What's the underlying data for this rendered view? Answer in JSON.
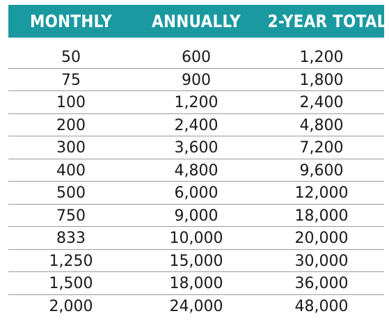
{
  "header": {
    "col1": "MONTHLY",
    "col2": "ANNUALLY",
    "col3": "2-YEAR TOTAL"
  },
  "colors": {
    "header_background": "#1a9aa0",
    "header_text": "#ffffff",
    "row_divider": "#9a9a9a"
  },
  "rows": [
    [
      "50",
      "600",
      "1,200"
    ],
    [
      "75",
      "900",
      "1,800"
    ],
    [
      "100",
      "1,200",
      "2,400"
    ],
    [
      "200",
      "2,400",
      "4,800"
    ],
    [
      "300",
      "3,600",
      "7,200"
    ],
    [
      "400",
      "4,800",
      "9,600"
    ],
    [
      "500",
      "6,000",
      "12,000"
    ],
    [
      "750",
      "9,000",
      "18,000"
    ],
    [
      "833",
      "10,000",
      "20,000"
    ],
    [
      "1,250",
      "15,000",
      "30,000"
    ],
    [
      "1,500",
      "18,000",
      "36,000"
    ],
    [
      "2,000",
      "24,000",
      "48,000"
    ]
  ]
}
